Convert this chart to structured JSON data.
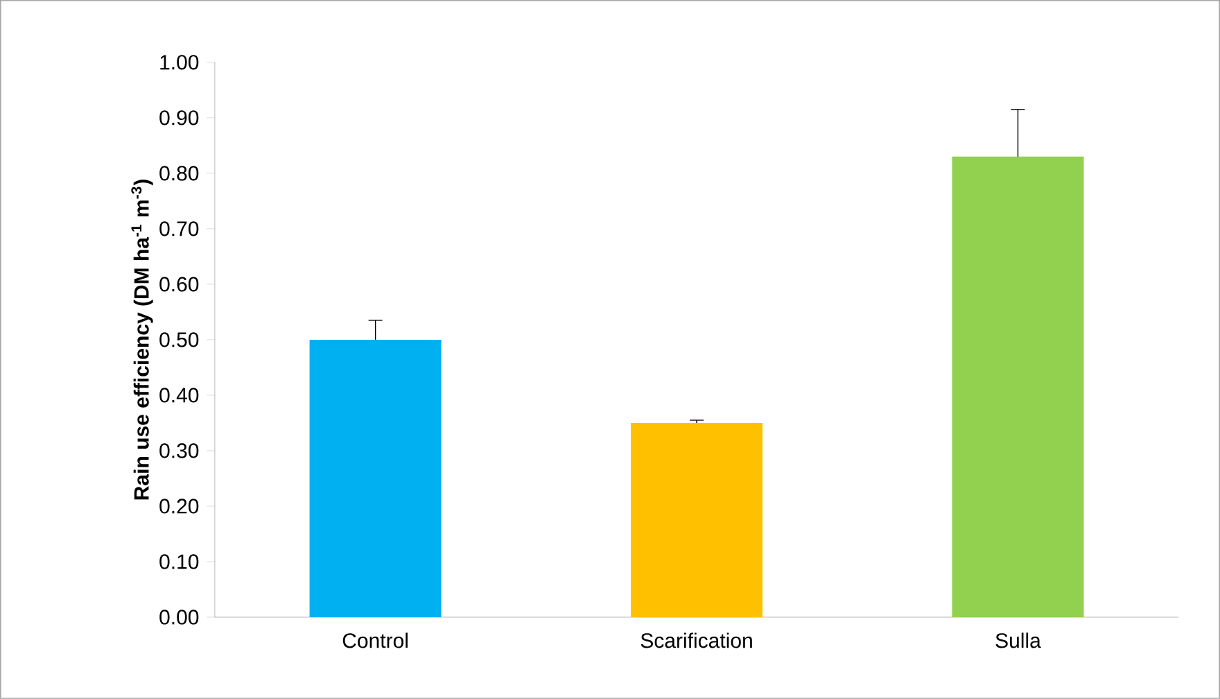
{
  "chart_data": {
    "type": "bar",
    "ylabel": "Rain use efficiency (DM ha$^{-1}$ m$^{-3}$)",
    "categories": [
      "Control",
      "Scarification",
      "Sulla"
    ],
    "values": [
      0.5,
      0.35,
      0.83
    ],
    "colors": [
      "#00b0f0",
      "#ffc000",
      "#92d050"
    ],
    "errors": [
      [
        0.5,
        0.535
      ],
      [
        0.35,
        0.355
      ],
      [
        0.83,
        0.915
      ]
    ],
    "ylim": [
      0,
      1
    ],
    "yticks": [
      {
        "value": 0,
        "label": "0.00"
      },
      {
        "value": 0.1,
        "label": "0.10"
      },
      {
        "value": 0.2,
        "label": "0.20"
      },
      {
        "value": 0.3,
        "label": "0.30"
      },
      {
        "value": 0.4,
        "label": "0.40"
      },
      {
        "value": 0.5,
        "label": "0.50"
      },
      {
        "value": 0.6,
        "label": "0.60"
      },
      {
        "value": 0.7,
        "label": "0.70"
      },
      {
        "value": 0.8,
        "label": "0.80"
      },
      {
        "value": 0.9,
        "label": "0.90"
      },
      {
        "value": 1,
        "label": "1.00"
      }
    ],
    "grid": false
  }
}
